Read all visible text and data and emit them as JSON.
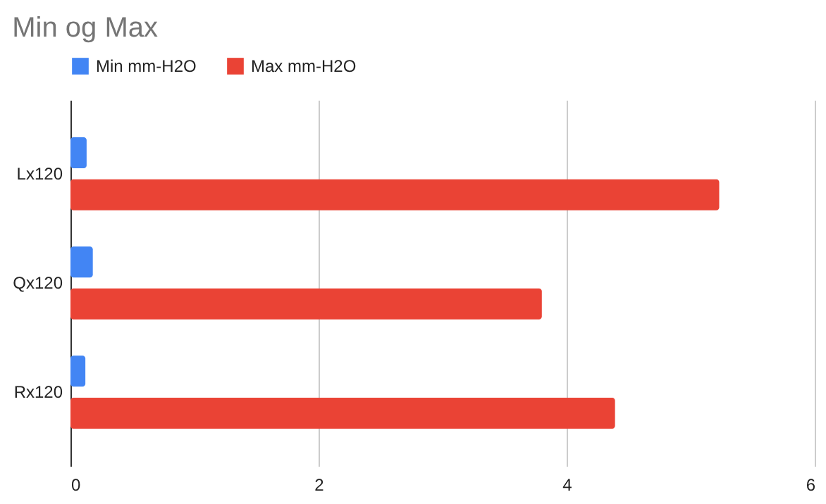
{
  "chart_data": {
    "type": "bar",
    "orientation": "horizontal",
    "title": "Min og Max",
    "categories": [
      "Lx120",
      "Qx120",
      "Rx120"
    ],
    "series": [
      {
        "name": "Min mm-H2O",
        "color": "#4285f4",
        "values": [
          0.13,
          0.18,
          0.12
        ]
      },
      {
        "name": "Max mm-H2O",
        "color": "#ea4335",
        "values": [
          5.23,
          3.8,
          4.39
        ]
      }
    ],
    "xlim": [
      0,
      6
    ],
    "xticks": [
      0,
      2,
      4,
      6
    ],
    "grid": "x",
    "legend": "top"
  }
}
